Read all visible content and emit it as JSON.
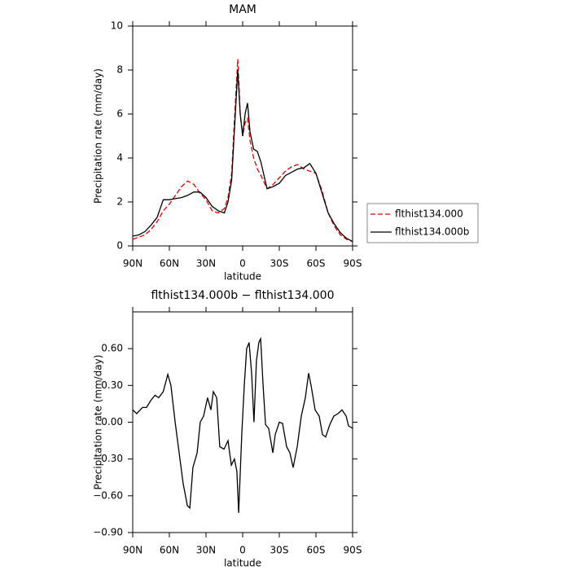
{
  "chart_data": [
    {
      "type": "line",
      "title": "MAM",
      "xlabel": "latitude",
      "ylabel": "Precipitation rate (mm/day)",
      "x": [
        90,
        85,
        80,
        75,
        70,
        65,
        60,
        55,
        50,
        45,
        40,
        35,
        30,
        25,
        20,
        15,
        12,
        9,
        6,
        4,
        2,
        0,
        -2,
        -4,
        -6,
        -9,
        -12,
        -15,
        -20,
        -25,
        -30,
        -35,
        -40,
        -45,
        -50,
        -55,
        -60,
        -65,
        -70,
        -75,
        -80,
        -85,
        -90
      ],
      "series": [
        {
          "name": "flthist134.000",
          "color": "#e00000",
          "dashed": true,
          "values": [
            0.3,
            0.4,
            0.5,
            0.75,
            1.1,
            1.6,
            1.9,
            2.3,
            2.7,
            2.95,
            2.8,
            2.4,
            2.1,
            1.6,
            1.5,
            1.7,
            2.2,
            3.3,
            6.5,
            8.5,
            6.0,
            5.0,
            5.6,
            5.8,
            4.8,
            4.0,
            3.5,
            3.2,
            2.6,
            2.8,
            3.1,
            3.4,
            3.6,
            3.7,
            3.5,
            3.4,
            3.3,
            2.5,
            1.5,
            0.9,
            0.5,
            0.3,
            0.2
          ]
        },
        {
          "name": "flthist134.000b",
          "color": "#000000",
          "dashed": false,
          "values": [
            0.45,
            0.5,
            0.65,
            0.95,
            1.3,
            2.1,
            2.1,
            2.15,
            2.2,
            2.3,
            2.45,
            2.45,
            2.2,
            1.8,
            1.6,
            1.5,
            2.0,
            3.0,
            6.0,
            8.0,
            6.0,
            5.0,
            6.0,
            6.5,
            5.2,
            4.4,
            4.3,
            3.8,
            2.6,
            2.7,
            2.85,
            3.2,
            3.35,
            3.5,
            3.55,
            3.75,
            3.3,
            2.4,
            1.5,
            1.0,
            0.6,
            0.35,
            0.2
          ]
        }
      ],
      "xlim": [
        90,
        -90
      ],
      "xticks": [
        {
          "value": 90,
          "label": "90N"
        },
        {
          "value": 60,
          "label": "60N"
        },
        {
          "value": 30,
          "label": "30N"
        },
        0,
        {
          "value": -30,
          "label": "30S"
        },
        {
          "value": -60,
          "label": "60S"
        },
        {
          "value": -90,
          "label": "90S"
        }
      ],
      "ylim": [
        0,
        10
      ],
      "yticks": [
        0,
        2,
        4,
        6,
        8,
        10
      ],
      "legend": "right"
    },
    {
      "type": "line",
      "title": "flthist134.000b − flthist134.000",
      "xlabel": "latitude",
      "ylabel": "Precipitation rate (mm/day)",
      "x": [
        90,
        86.7,
        82,
        78.7,
        75,
        71.7,
        68.7,
        65,
        61.3,
        58.7,
        55.3,
        52,
        48.7,
        45.3,
        43.3,
        40.7,
        37.3,
        34.7,
        32,
        28.7,
        26,
        24,
        21.3,
        18.7,
        15.3,
        12,
        9.3,
        6.7,
        4.7,
        3.3,
        0.7,
        -1.3,
        -3.3,
        -5.3,
        -7.3,
        -9.3,
        -11.3,
        -13.3,
        -14.7,
        -16.7,
        -18.7,
        -21.3,
        -24.7,
        -26.7,
        -30,
        -32.7,
        -36,
        -38.7,
        -41.3,
        -44.7,
        -48,
        -51.3,
        -54,
        -56,
        -59.3,
        -62.7,
        -65.3,
        -68,
        -71.3,
        -74.7,
        -78,
        -81.3,
        -84.7,
        -86.7,
        -90
      ],
      "series": [
        {
          "name": null,
          "color": "#000000",
          "dashed": false,
          "values": [
            0.1,
            0.07,
            0.12,
            0.12,
            0.18,
            0.22,
            0.2,
            0.25,
            0.39,
            0.3,
            0.0,
            -0.25,
            -0.5,
            -0.68,
            -0.7,
            -0.37,
            -0.25,
            0.0,
            0.05,
            0.2,
            0.1,
            0.25,
            0.2,
            -0.2,
            -0.22,
            -0.15,
            -0.35,
            -0.3,
            -0.4,
            -0.74,
            -0.1,
            0.3,
            0.6,
            0.65,
            0.4,
            0.0,
            0.5,
            0.65,
            0.68,
            0.3,
            -0.02,
            -0.05,
            -0.25,
            -0.1,
            0.0,
            -0.01,
            -0.2,
            -0.25,
            -0.37,
            -0.2,
            0.05,
            0.2,
            0.4,
            0.3,
            0.1,
            0.05,
            -0.1,
            -0.12,
            -0.02,
            0.05,
            0.07,
            0.1,
            0.05,
            -0.03,
            -0.05
          ]
        }
      ],
      "xlim": [
        90,
        -90
      ],
      "xticks": [
        {
          "value": 90,
          "label": "90N"
        },
        {
          "value": 60,
          "label": "60N"
        },
        {
          "value": 30,
          "label": "30N"
        },
        0,
        {
          "value": -30,
          "label": "30S"
        },
        {
          "value": -60,
          "label": "60S"
        },
        {
          "value": -90,
          "label": "90S"
        }
      ],
      "ylim": [
        -0.9,
        0.9
      ],
      "yticks": [
        {
          "value": -0.9,
          "label": "−0.90"
        },
        {
          "value": -0.6,
          "label": "−0.60"
        },
        {
          "value": -0.3,
          "label": "−0.30"
        },
        {
          "value": 0,
          "label": "0.00"
        },
        {
          "value": 0.3,
          "label": "0.30"
        },
        {
          "value": 0.6,
          "label": "0.60"
        }
      ]
    }
  ]
}
